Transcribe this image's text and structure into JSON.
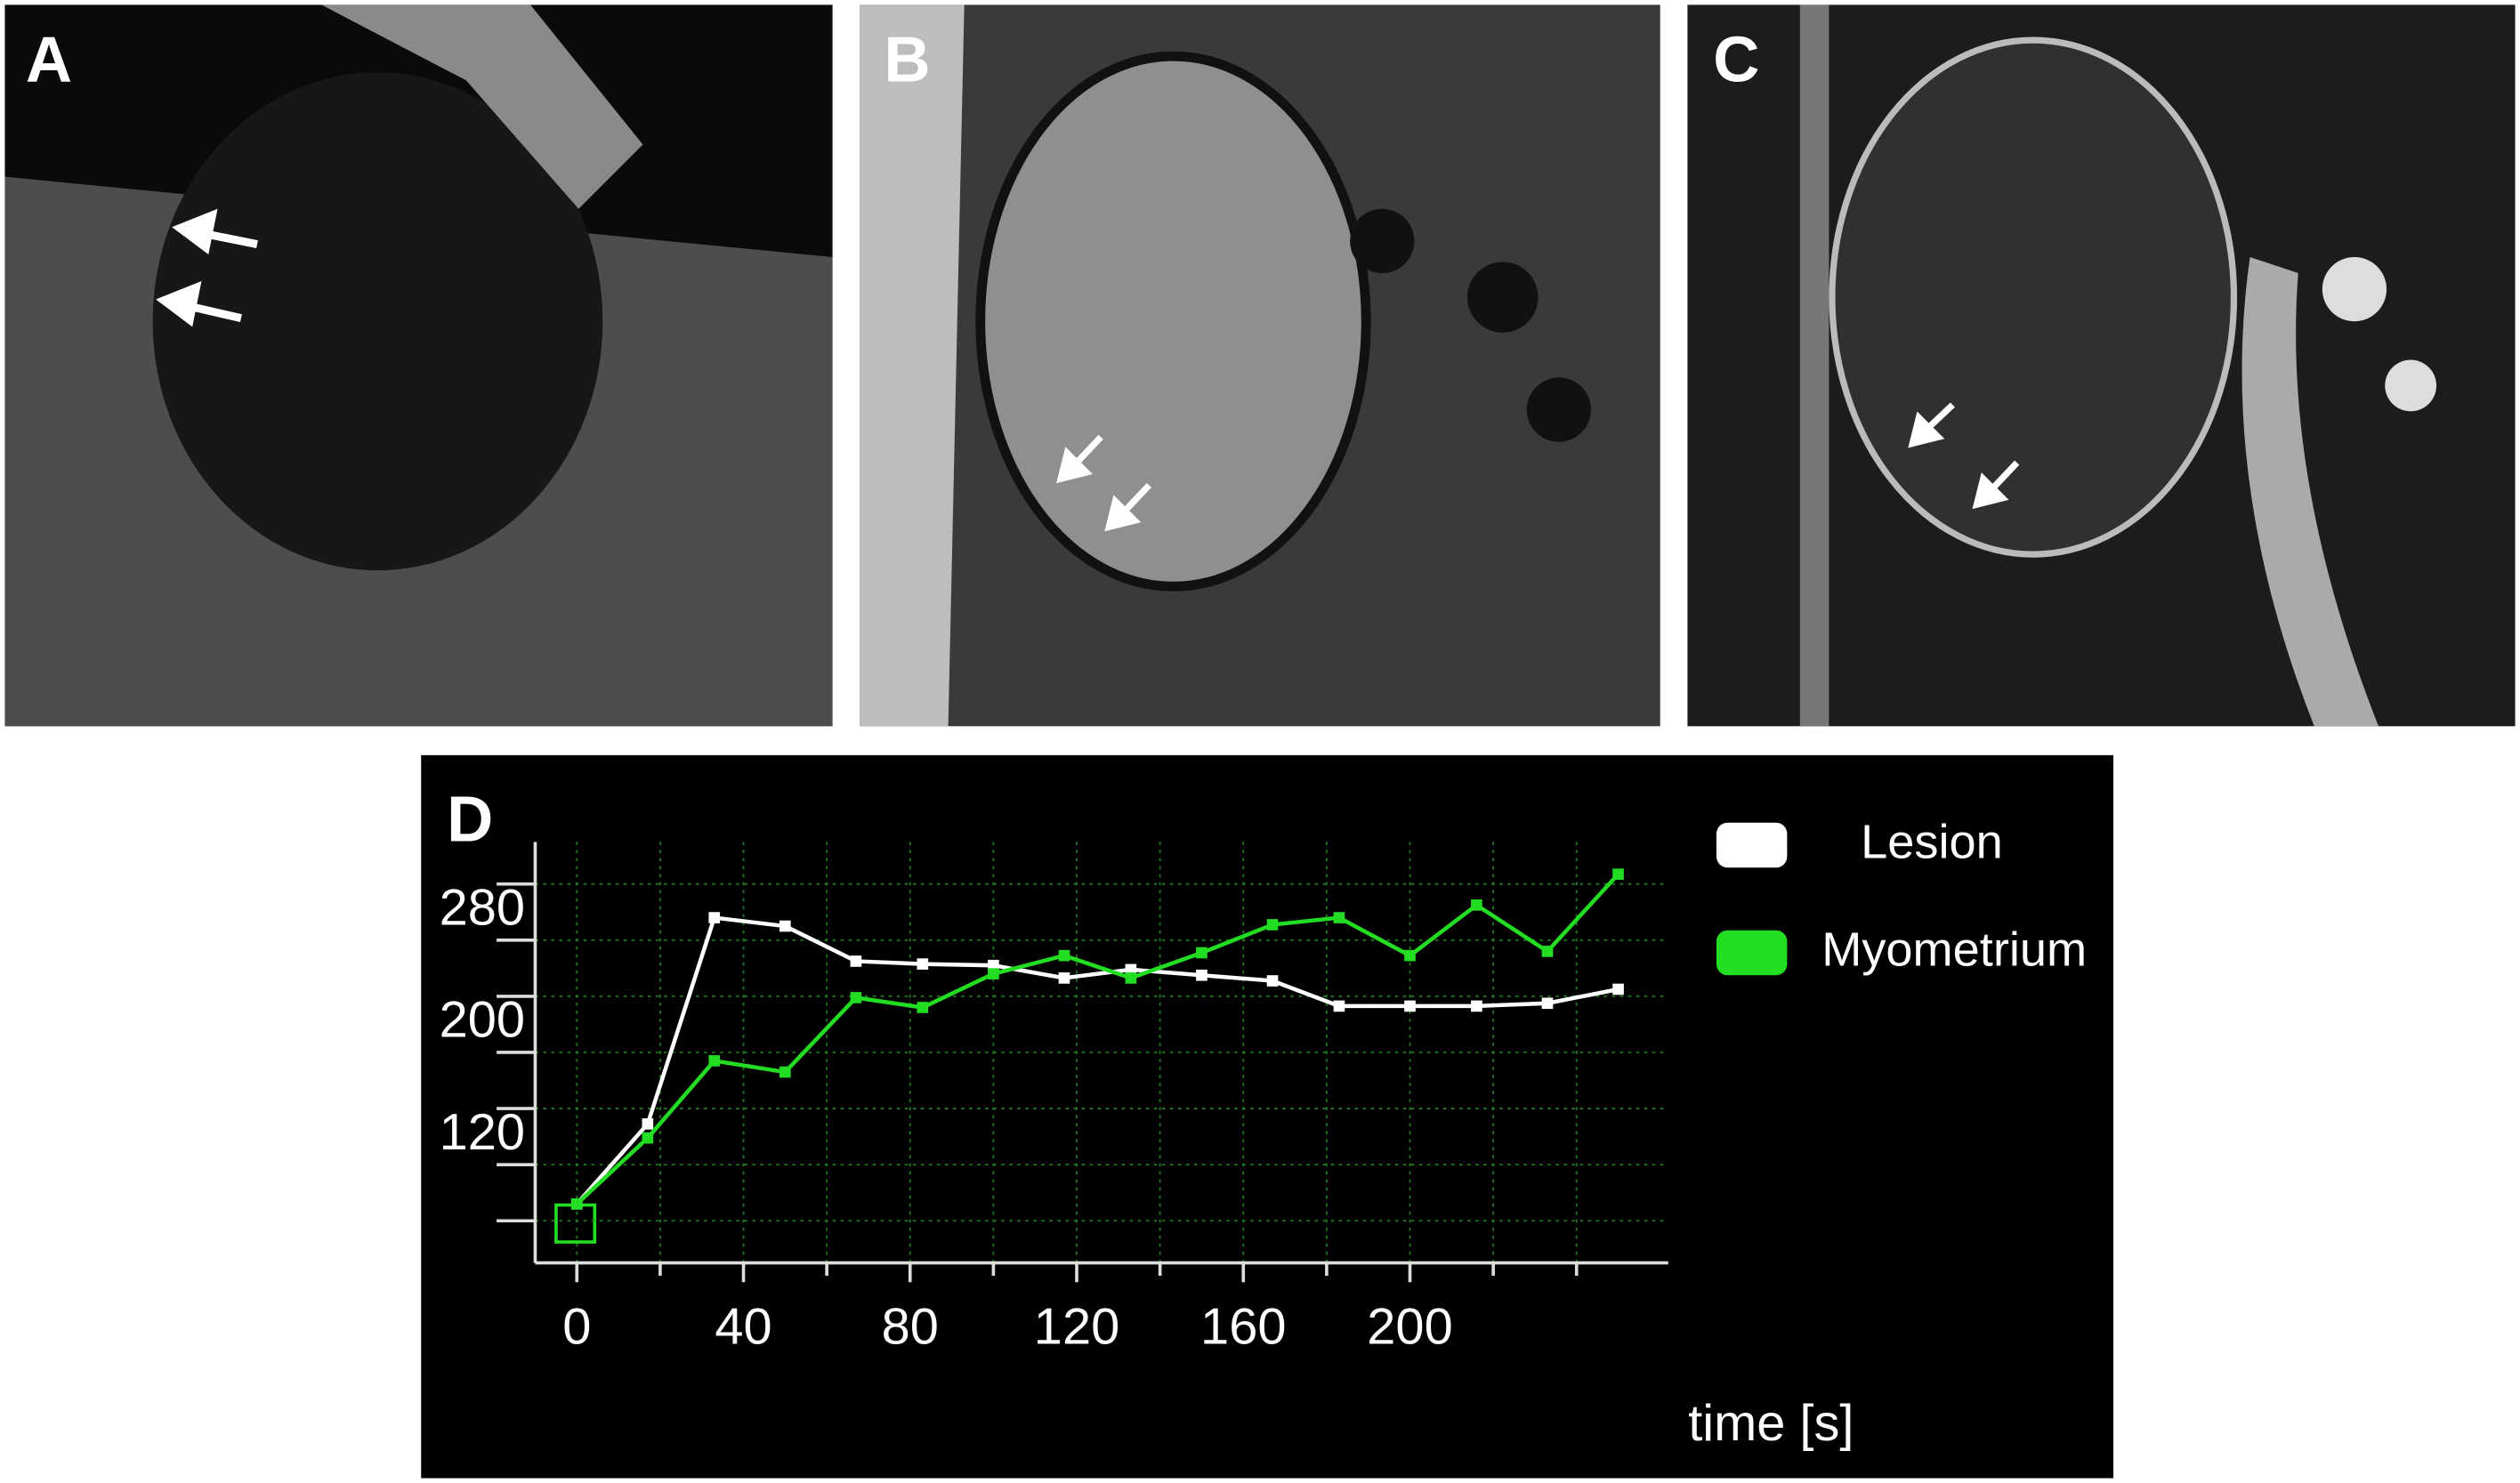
{
  "panels": {
    "a": {
      "label": "A"
    },
    "b": {
      "label": "B"
    },
    "c": {
      "label": "C"
    },
    "d": {
      "label": "D"
    }
  },
  "chart_data": {
    "type": "line",
    "x_label": "time [s]",
    "x": [
      0,
      17,
      33,
      50,
      67,
      83,
      100,
      117,
      133,
      150,
      167,
      183,
      200,
      216,
      233,
      250
    ],
    "series": [
      {
        "name": "Lesion",
        "color": "#ffffff",
        "values": [
          92,
          149,
          296,
          290,
          265,
          263,
          262,
          253,
          259,
          255,
          251,
          233,
          233,
          233,
          235,
          245
        ]
      },
      {
        "name": "Myometrium",
        "color": "#22dd22",
        "values": [
          92,
          139,
          194,
          186,
          239,
          232,
          256,
          269,
          253,
          271,
          291,
          296,
          269,
          305,
          272,
          327
        ]
      }
    ],
    "xlim": [
      -10,
      262
    ],
    "ylim": [
      50,
      350
    ],
    "xticks": [
      0,
      40,
      80,
      120,
      160,
      200
    ],
    "yticks": [
      120,
      200,
      280
    ],
    "xminorticks": [
      20,
      60,
      100,
      140,
      180,
      220,
      240
    ],
    "yminorticks": [
      80,
      160,
      240,
      320
    ],
    "grid": true
  }
}
